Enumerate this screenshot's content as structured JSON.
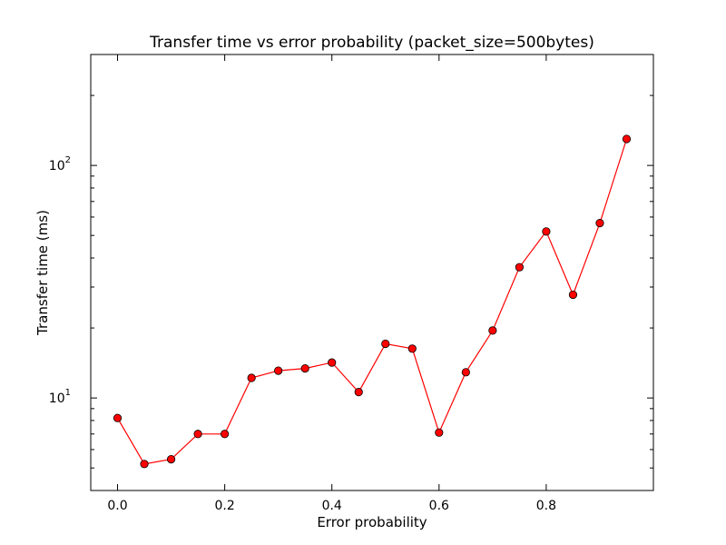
{
  "chart_data": {
    "type": "line",
    "title": "Transfer time vs error probability (packet_size=500bytes)",
    "xlabel": "Error probability",
    "ylabel": "Transfer time (ms)",
    "xlim": [
      -0.05,
      1.0
    ],
    "ylim": [
      4.0,
      300.0
    ],
    "y_scale": "log",
    "grid": false,
    "legend": false,
    "x_ticks": [
      0.0,
      0.2,
      0.4,
      0.6,
      0.8
    ],
    "x_tick_labels": [
      "0.0",
      "0.2",
      "0.4",
      "0.6",
      "0.8"
    ],
    "y_ticks": [
      10,
      100
    ],
    "y_tick_labels": [
      {
        "base": "10",
        "exp": "1"
      },
      {
        "base": "10",
        "exp": "2"
      }
    ],
    "series": [
      {
        "color": "#ff0000",
        "marker": "circle",
        "x": [
          0.0,
          0.05,
          0.1,
          0.15,
          0.2,
          0.25,
          0.3,
          0.35,
          0.4,
          0.45,
          0.5,
          0.55,
          0.6,
          0.65,
          0.7,
          0.75,
          0.8,
          0.85,
          0.9,
          0.95
        ],
        "y": [
          8.2,
          5.2,
          5.45,
          7.0,
          7.0,
          12.2,
          13.1,
          13.4,
          14.2,
          10.6,
          17.1,
          16.3,
          7.1,
          12.9,
          19.5,
          36.5,
          52.0,
          27.8,
          56.5,
          130.0
        ]
      }
    ]
  }
}
